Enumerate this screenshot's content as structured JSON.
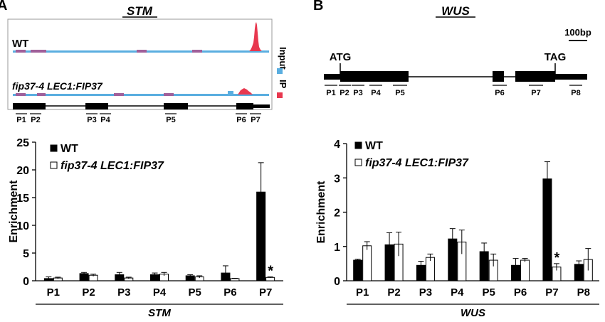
{
  "panel_labels": [
    "A",
    "B"
  ],
  "stm": {
    "title": "STM",
    "track": {
      "wt_label": "WT",
      "mut_label": "fip37-4 LEC1:FIP37",
      "legend": {
        "input": "Input",
        "ip": "IP"
      },
      "primers": [
        "P1",
        "P2",
        "P3",
        "P4",
        "P5",
        "P6",
        "P7"
      ]
    }
  },
  "wus": {
    "title": "WUS",
    "gene": {
      "scale_label": "100bp",
      "atg": "ATG",
      "tag": "TAG",
      "primers": [
        "P1",
        "P2",
        "P3",
        "P4",
        "P5",
        "P6",
        "P7",
        "P8"
      ]
    }
  },
  "colors": {
    "input": "#5aaee0",
    "ip": "#e8384f",
    "wt": "#000000",
    "mutant": "#ffffff"
  },
  "chart_data": [
    {
      "type": "bar",
      "gene": "STM",
      "xlabel": "STM",
      "ylabel": "Enrichment",
      "ylim": [
        0,
        25
      ],
      "yticks": [
        0,
        5,
        10,
        15,
        20,
        25
      ],
      "categories": [
        "P1",
        "P2",
        "P3",
        "P4",
        "P5",
        "P6",
        "P7"
      ],
      "series": [
        {
          "name": "WT",
          "values": [
            0.4,
            1.3,
            1.1,
            1.1,
            0.9,
            1.4,
            16.0
          ],
          "errors": [
            0.3,
            0.2,
            0.4,
            0.3,
            0.2,
            1.3,
            5.3
          ]
        },
        {
          "name": "fip37-4 LEC1:FIP37",
          "values": [
            0.5,
            1.0,
            0.5,
            1.2,
            0.7,
            0.4,
            0.6
          ],
          "errors": [
            0.15,
            0.2,
            0.15,
            0.3,
            0.2,
            0.05,
            0.1
          ]
        }
      ],
      "annotations": [
        {
          "category": "P7",
          "text": "*"
        }
      ],
      "legend": "top-left"
    },
    {
      "type": "bar",
      "gene": "WUS",
      "xlabel": "WUS",
      "ylabel": "Enrichment",
      "ylim": [
        0,
        4
      ],
      "yticks": [
        0,
        1,
        2,
        3,
        4
      ],
      "categories": [
        "P1",
        "P2",
        "P3",
        "P4",
        "P5",
        "P6",
        "P7",
        "P8"
      ],
      "series": [
        {
          "name": "WT",
          "values": [
            0.6,
            1.05,
            0.45,
            1.22,
            0.85,
            0.45,
            2.97,
            0.48
          ],
          "errors": [
            0.03,
            0.35,
            0.12,
            0.3,
            0.25,
            0.2,
            0.5,
            0.1
          ]
        },
        {
          "name": "fip37-4 LEC1:FIP37",
          "values": [
            1.02,
            1.07,
            0.68,
            1.13,
            0.6,
            0.6,
            0.4,
            0.62
          ],
          "errors": [
            0.12,
            0.35,
            0.1,
            0.35,
            0.18,
            0.05,
            0.1,
            0.32
          ]
        }
      ],
      "annotations": [
        {
          "category": "P7",
          "text": "*"
        }
      ],
      "legend": "top-left"
    }
  ]
}
